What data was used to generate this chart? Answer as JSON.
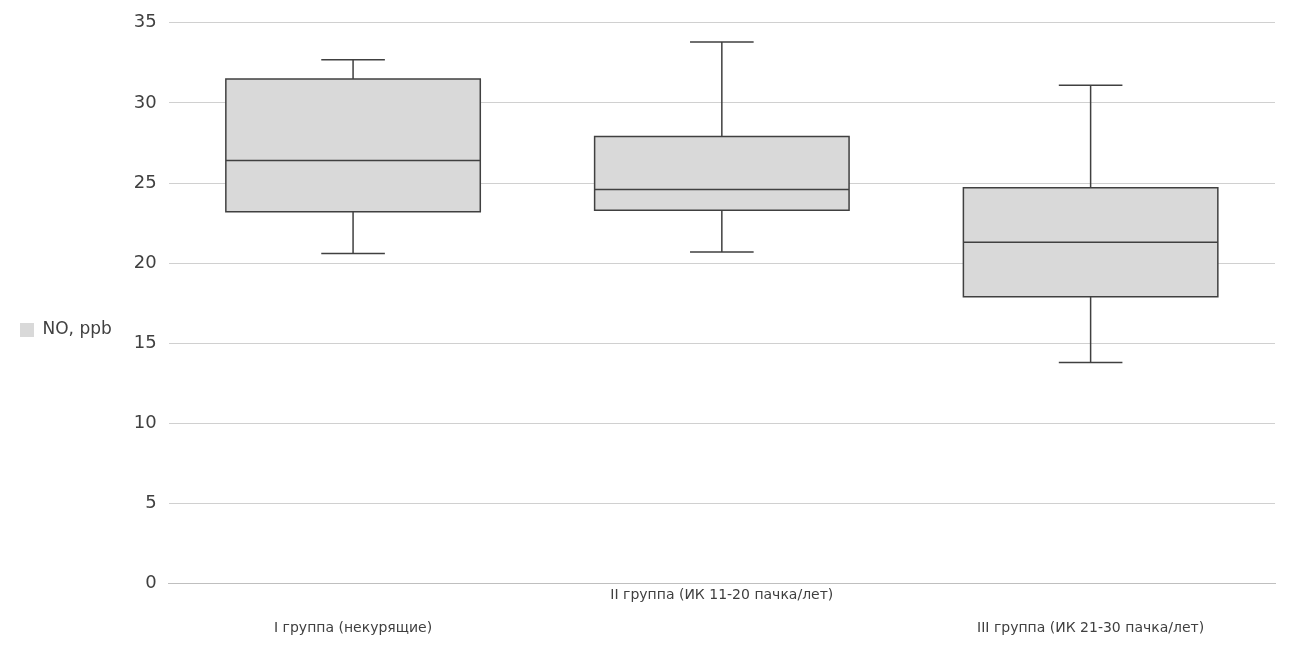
{
  "chart_data": {
    "type": "box",
    "categories": [
      "I группа (некурящие)",
      "II группа (ИК 11-20 пачка/лет)",
      "III группа (ИК 21-30 пачка/лет)"
    ],
    "series": [
      {
        "name": "NO, ppb",
        "color": "#d9d9d9",
        "boxes": [
          {
            "low": 20.6,
            "q1": 23.2,
            "median": 26.4,
            "q3": 31.5,
            "high": 32.7
          },
          {
            "low": 20.7,
            "q1": 23.3,
            "median": 24.6,
            "q3": 27.9,
            "high": 33.8
          },
          {
            "low": 13.8,
            "q1": 17.9,
            "median": 21.3,
            "q3": 24.7,
            "high": 31.1
          }
        ]
      }
    ],
    "ylim": [
      0,
      35
    ],
    "yticks": [
      0,
      5,
      10,
      15,
      20,
      25,
      30,
      35
    ],
    "grid": "y",
    "legend": "left"
  }
}
